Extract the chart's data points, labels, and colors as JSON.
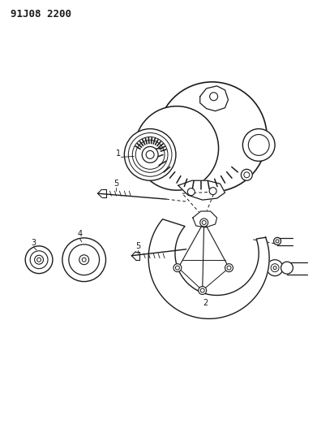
{
  "title": "91J08 2200",
  "bg": "#ffffff",
  "lc": "#1a1a1a",
  "fig_width": 4.12,
  "fig_height": 5.33,
  "dpi": 100
}
